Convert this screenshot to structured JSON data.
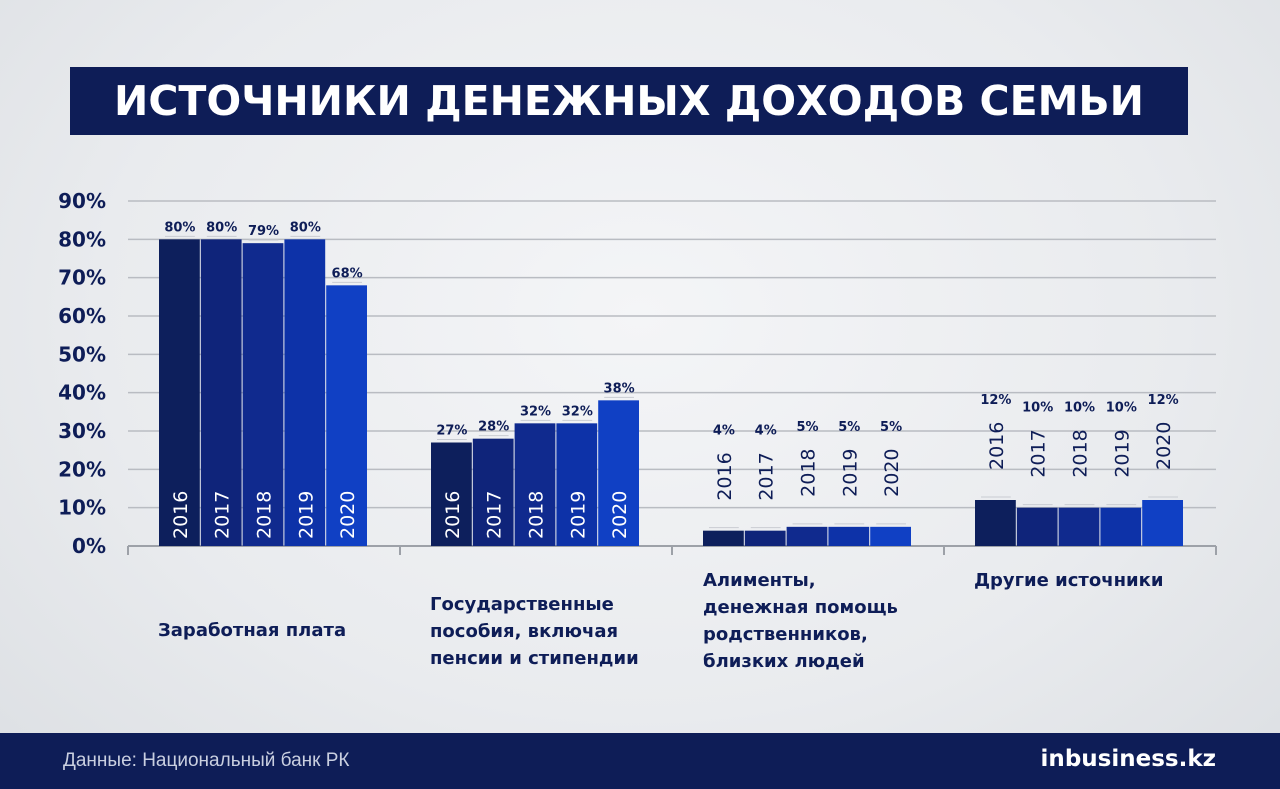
{
  "title": "ИСТОЧНИКИ ДЕНЕЖНЫХ ДОХОДОВ СЕМЬИ",
  "source": "Данные: Национальный банк РК",
  "brand": {
    "prefix": "in",
    "name": "business.kz"
  },
  "colors": {
    "title_bg": "#0e1d57",
    "text": "#0e1d57",
    "series": [
      "#0d1f5c",
      "#0f247a",
      "#102a8e",
      "#0d32a8",
      "#1040c4"
    ]
  },
  "chart_data": {
    "type": "bar",
    "title": "ИСТОЧНИКИ ДЕНЕЖНЫХ ДОХОДОВ СЕМЬИ",
    "categories": [
      "Заработная плата",
      "Государственные\nпособия, включая\nпенсии и стипендии",
      "Алименты,\nденежная помощь\nродственников,\nблизких людей",
      "Другие источники"
    ],
    "series": [
      {
        "name": "2016",
        "values": [
          80,
          27,
          4,
          12
        ]
      },
      {
        "name": "2017",
        "values": [
          80,
          28,
          4,
          10
        ]
      },
      {
        "name": "2018",
        "values": [
          79,
          32,
          5,
          10
        ]
      },
      {
        "name": "2019",
        "values": [
          80,
          32,
          5,
          10
        ]
      },
      {
        "name": "2020",
        "values": [
          68,
          38,
          5,
          12
        ]
      }
    ],
    "yticks": [
      "0%",
      "10%",
      "20%",
      "30%",
      "40%",
      "50%",
      "60%",
      "70%",
      "80%",
      "90%"
    ],
    "ylim": [
      0,
      90
    ],
    "grid": true,
    "value_suffix": "%"
  }
}
